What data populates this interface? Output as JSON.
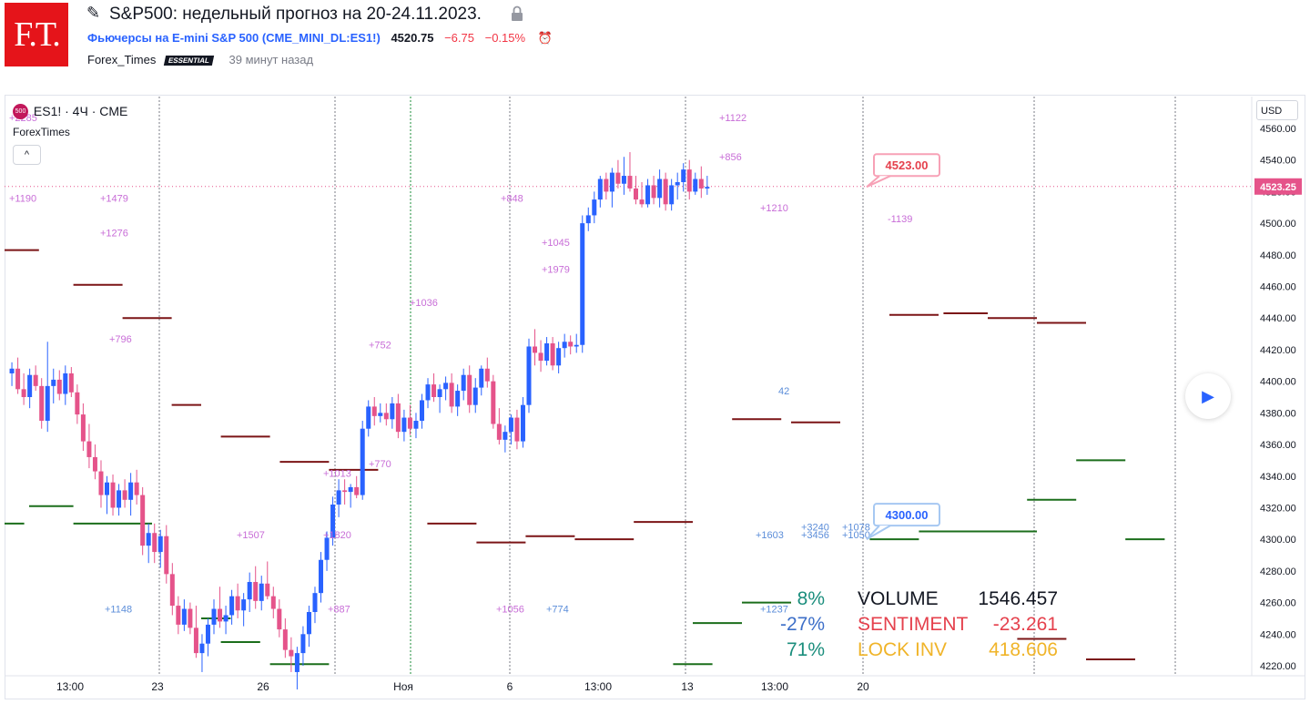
{
  "header": {
    "logo_text": "F.T.",
    "title": "S&P500: недельный прогноз на 20-24.11.2023.",
    "symbol_name": "Фьючерсы на E-mini S&P 500",
    "symbol_code": "(CME_MINI_DL:ES1!)",
    "price": "4520.75",
    "change": "−6.75",
    "change_pct": "−0.15%",
    "author": "Forex_Times",
    "badge": "ESSENTIAL",
    "time_ago": "39 минут назад"
  },
  "legend": {
    "symbol_badge": "500",
    "title": "ES1! · 4Ч · CME",
    "indicator": "ForexTimes",
    "collapse": "^"
  },
  "currency": "USD",
  "colors": {
    "up": "#2962ff",
    "down": "#e5538a",
    "res": "#7b1416",
    "sup": "#1b6e1b",
    "cluster": "#c86dd7",
    "cluster_blue": "#5b8dd9"
  },
  "chart_data": {
    "type": "candlestick",
    "y_ticks": [
      4220,
      4240,
      4260,
      4280,
      4300,
      4320,
      4340,
      4360,
      4380,
      4400,
      4420,
      4440,
      4460,
      4480,
      4500,
      4520,
      4540,
      4560
    ],
    "ylim": [
      4216,
      4569
    ],
    "x_ticks": [
      {
        "label": "13:00",
        "bar": 15
      },
      {
        "label": "23",
        "bar": 34
      },
      {
        "label": "26",
        "bar": 56
      },
      {
        "label": "Ноя",
        "bar": 85
      },
      {
        "label": "6",
        "bar": 110
      },
      {
        "label": "13:00",
        "bar": 128
      },
      {
        "label": "13",
        "bar": 148
      },
      {
        "label": "13:00",
        "bar": 167
      },
      {
        "label": "20",
        "bar": 186
      }
    ],
    "candles": [
      [
        4405,
        4412,
        4397,
        4408
      ],
      [
        4408,
        4415,
        4392,
        4395
      ],
      [
        4395,
        4405,
        4385,
        4390
      ],
      [
        4390,
        4408,
        4383,
        4404
      ],
      [
        4404,
        4410,
        4394,
        4397
      ],
      [
        4397,
        4402,
        4370,
        4375
      ],
      [
        4375,
        4425,
        4368,
        4397
      ],
      [
        4397,
        4408,
        4386,
        4401
      ],
      [
        4401,
        4407,
        4388,
        4392
      ],
      [
        4392,
        4410,
        4385,
        4405
      ],
      [
        4405,
        4409,
        4390,
        4393
      ],
      [
        4393,
        4398,
        4373,
        4379
      ],
      [
        4379,
        4386,
        4356,
        4362
      ],
      [
        4362,
        4373,
        4345,
        4352
      ],
      [
        4352,
        4360,
        4338,
        4343
      ],
      [
        4343,
        4350,
        4320,
        4328
      ],
      [
        4328,
        4340,
        4316,
        4336
      ],
      [
        4336,
        4341,
        4315,
        4320
      ],
      [
        4320,
        4335,
        4315,
        4331
      ],
      [
        4331,
        4338,
        4320,
        4325
      ],
      [
        4325,
        4342,
        4315,
        4336
      ],
      [
        4336,
        4344,
        4322,
        4328
      ],
      [
        4328,
        4333,
        4290,
        4296
      ],
      [
        4296,
        4310,
        4285,
        4304
      ],
      [
        4304,
        4310,
        4285,
        4292
      ],
      [
        4292,
        4306,
        4282,
        4302
      ],
      [
        4302,
        4309,
        4272,
        4278
      ],
      [
        4278,
        4285,
        4252,
        4258
      ],
      [
        4258,
        4264,
        4240,
        4246
      ],
      [
        4246,
        4262,
        4242,
        4256
      ],
      [
        4256,
        4260,
        4240,
        4244
      ],
      [
        4244,
        4258,
        4225,
        4228
      ],
      [
        4228,
        4240,
        4216,
        4234
      ],
      [
        4234,
        4250,
        4226,
        4246
      ],
      [
        4246,
        4262,
        4240,
        4256
      ],
      [
        4256,
        4270,
        4244,
        4248
      ],
      [
        4248,
        4258,
        4240,
        4252
      ],
      [
        4252,
        4268,
        4246,
        4264
      ],
      [
        4264,
        4272,
        4250,
        4255
      ],
      [
        4255,
        4266,
        4245,
        4262
      ],
      [
        4262,
        4279,
        4254,
        4273
      ],
      [
        4273,
        4283,
        4256,
        4261
      ],
      [
        4261,
        4277,
        4255,
        4272
      ],
      [
        4272,
        4286,
        4262,
        4264
      ],
      [
        4264,
        4270,
        4250,
        4256
      ],
      [
        4256,
        4262,
        4238,
        4243
      ],
      [
        4243,
        4250,
        4225,
        4230
      ],
      [
        4230,
        4238,
        4216,
        4226
      ],
      [
        4216,
        4232,
        4205,
        4228
      ],
      [
        4228,
        4245,
        4220,
        4240
      ],
      [
        4240,
        4258,
        4232,
        4254
      ],
      [
        4254,
        4270,
        4247,
        4266
      ],
      [
        4266,
        4292,
        4260,
        4287
      ],
      [
        4287,
        4305,
        4280,
        4301
      ],
      [
        4301,
        4327,
        4296,
        4322
      ],
      [
        4322,
        4338,
        4314,
        4331
      ],
      [
        4331,
        4338,
        4322,
        4330
      ],
      [
        4330,
        4335,
        4320,
        4333
      ],
      [
        4333,
        4340,
        4326,
        4328
      ],
      [
        4328,
        4375,
        4325,
        4370
      ],
      [
        4370,
        4388,
        4365,
        4384
      ],
      [
        4384,
        4390,
        4372,
        4378
      ],
      [
        4378,
        4386,
        4374,
        4380
      ],
      [
        4380,
        4386,
        4372,
        4376
      ],
      [
        4376,
        4390,
        4370,
        4386
      ],
      [
        4386,
        4392,
        4364,
        4368
      ],
      [
        4368,
        4382,
        4362,
        4377
      ],
      [
        4377,
        4385,
        4366,
        4370
      ],
      [
        4370,
        4380,
        4364,
        4375
      ],
      [
        4375,
        4392,
        4370,
        4388
      ],
      [
        4388,
        4402,
        4383,
        4398
      ],
      [
        4398,
        4405,
        4387,
        4390
      ],
      [
        4390,
        4398,
        4380,
        4395
      ],
      [
        4395,
        4403,
        4388,
        4399
      ],
      [
        4399,
        4405,
        4380,
        4384
      ],
      [
        4384,
        4398,
        4378,
        4394
      ],
      [
        4394,
        4408,
        4388,
        4404
      ],
      [
        4404,
        4410,
        4380,
        4385
      ],
      [
        4385,
        4402,
        4380,
        4396
      ],
      [
        4396,
        4410,
        4391,
        4408
      ],
      [
        4408,
        4415,
        4396,
        4400
      ],
      [
        4400,
        4404,
        4370,
        4373
      ],
      [
        4373,
        4383,
        4360,
        4363
      ],
      [
        4363,
        4372,
        4355,
        4368
      ],
      [
        4368,
        4379,
        4360,
        4377
      ],
      [
        4377,
        4382,
        4357,
        4362
      ],
      [
        4362,
        4390,
        4358,
        4385
      ],
      [
        4385,
        4427,
        4380,
        4422
      ],
      [
        4422,
        4433,
        4410,
        4418
      ],
      [
        4418,
        4426,
        4406,
        4413
      ],
      [
        4413,
        4428,
        4410,
        4424
      ],
      [
        4424,
        4428,
        4407,
        4410
      ],
      [
        4410,
        4425,
        4405,
        4421
      ],
      [
        4421,
        4430,
        4415,
        4425
      ],
      [
        4425,
        4429,
        4417,
        4422
      ],
      [
        4422,
        4430,
        4418,
        4423
      ],
      [
        4423,
        4505,
        4418,
        4500
      ],
      [
        4500,
        4510,
        4495,
        4505
      ],
      [
        4505,
        4520,
        4500,
        4515
      ],
      [
        4515,
        4530,
        4510,
        4528
      ],
      [
        4528,
        4532,
        4515,
        4520
      ],
      [
        4520,
        4535,
        4510,
        4532
      ],
      [
        4532,
        4540,
        4522,
        4525
      ],
      [
        4525,
        4542,
        4518,
        4530
      ],
      [
        4530,
        4545,
        4520,
        4522
      ],
      [
        4522,
        4530,
        4512,
        4515
      ],
      [
        4515,
        4526,
        4510,
        4512
      ],
      [
        4512,
        4528,
        4510,
        4524
      ],
      [
        4524,
        4530,
        4512,
        4516
      ],
      [
        4516,
        4534,
        4510,
        4528
      ],
      [
        4528,
        4532,
        4508,
        4512
      ],
      [
        4512,
        4528,
        4508,
        4524
      ],
      [
        4524,
        4532,
        4515,
        4526
      ],
      [
        4526,
        4538,
        4520,
        4534
      ],
      [
        4534,
        4540,
        4515,
        4520
      ],
      [
        4520,
        4532,
        4518,
        4528
      ],
      [
        4528,
        4536,
        4516,
        4522
      ],
      [
        4522,
        4530,
        4518,
        4523
      ]
    ],
    "resistance_levels": [
      {
        "price": 4483,
        "from": 0,
        "to": 7
      },
      {
        "price": 4461,
        "from": 14,
        "to": 24
      },
      {
        "price": 4440,
        "from": 24,
        "to": 34
      },
      {
        "price": 4385,
        "from": 34,
        "to": 40
      },
      {
        "price": 4365,
        "from": 44,
        "to": 54
      },
      {
        "price": 4349,
        "from": 56,
        "to": 66
      },
      {
        "price": 4344,
        "from": 66,
        "to": 76
      },
      {
        "price": 4310,
        "from": 86,
        "to": 96
      },
      {
        "price": 4298,
        "from": 96,
        "to": 106
      },
      {
        "price": 4302,
        "from": 106,
        "to": 116
      },
      {
        "price": 4300,
        "from": 116,
        "to": 128
      },
      {
        "price": 4311,
        "from": 128,
        "to": 140
      },
      {
        "price": 4376,
        "from": 148,
        "to": 158
      },
      {
        "price": 4374,
        "from": 160,
        "to": 170
      },
      {
        "price": 4442,
        "from": 180,
        "to": 190
      },
      {
        "price": 4443,
        "from": 191,
        "to": 200
      },
      {
        "price": 4440,
        "from": 200,
        "to": 210
      },
      {
        "price": 4437,
        "from": 210,
        "to": 220
      },
      {
        "price": 4224,
        "from": 220,
        "to": 230
      },
      {
        "price": 4237,
        "from": 206,
        "to": 216
      }
    ],
    "support_levels": [
      {
        "price": 4310,
        "from": 0,
        "to": 4
      },
      {
        "price": 4321,
        "from": 5,
        "to": 14
      },
      {
        "price": 4310,
        "from": 14,
        "to": 30
      },
      {
        "price": 4250,
        "from": 40,
        "to": 46
      },
      {
        "price": 4235,
        "from": 44,
        "to": 52
      },
      {
        "price": 4221,
        "from": 54,
        "to": 66
      },
      {
        "price": 4221,
        "from": 136,
        "to": 144
      },
      {
        "price": 4247,
        "from": 140,
        "to": 150
      },
      {
        "price": 4260,
        "from": 150,
        "to": 160
      },
      {
        "price": 4300,
        "from": 176,
        "to": 186
      },
      {
        "price": 4305,
        "from": 186,
        "to": 210
      },
      {
        "price": 4325,
        "from": 208,
        "to": 218
      },
      {
        "price": 4350,
        "from": 218,
        "to": 228
      },
      {
        "price": 4300,
        "from": 228,
        "to": 236
      }
    ],
    "cluster_labels": [
      {
        "text": "+2285",
        "bar": 0,
        "price": 4567,
        "color": "cluster"
      },
      {
        "text": "+1190",
        "bar": 0,
        "price": 4516,
        "color": "cluster"
      },
      {
        "text": "+1479",
        "bar": 20,
        "price": 4516,
        "color": "cluster"
      },
      {
        "text": "+1276",
        "bar": 20,
        "price": 4494,
        "color": "cluster"
      },
      {
        "text": "+796",
        "bar": 22,
        "price": 4427,
        "color": "cluster"
      },
      {
        "text": "+1122",
        "bar": 156,
        "price": 4567,
        "color": "cluster"
      },
      {
        "text": "+856",
        "bar": 156,
        "price": 4542,
        "color": "cluster"
      },
      {
        "text": "+848",
        "bar": 108,
        "price": 4516,
        "color": "cluster"
      },
      {
        "text": "+1210",
        "bar": 165,
        "price": 4510,
        "color": "cluster"
      },
      {
        "text": "+1045",
        "bar": 117,
        "price": 4488,
        "color": "cluster"
      },
      {
        "text": "+1979",
        "bar": 117,
        "price": 4471,
        "color": "cluster"
      },
      {
        "text": "+1036",
        "bar": 88,
        "price": 4450,
        "color": "cluster"
      },
      {
        "text": "+752",
        "bar": 79,
        "price": 4423,
        "color": "cluster"
      },
      {
        "text": "+770",
        "bar": 79,
        "price": 4348,
        "color": "cluster"
      },
      {
        "text": "+1013",
        "bar": 69,
        "price": 4342,
        "color": "cluster"
      },
      {
        "text": "+1507",
        "bar": 50,
        "price": 4303,
        "color": "cluster"
      },
      {
        "text": "+1820",
        "bar": 69,
        "price": 4303,
        "color": "cluster"
      },
      {
        "text": "+887",
        "bar": 70,
        "price": 4256,
        "color": "cluster"
      },
      {
        "text": "+1148",
        "bar": 21,
        "price": 4256,
        "color": "cluster_blue"
      },
      {
        "text": "+1056",
        "bar": 107,
        "price": 4256,
        "color": "cluster"
      },
      {
        "text": "+774",
        "bar": 118,
        "price": 4256,
        "color": "cluster_blue"
      },
      {
        "text": "+1237",
        "bar": 165,
        "price": 4256,
        "color": "cluster_blue"
      },
      {
        "text": "+1603",
        "bar": 164,
        "price": 4303,
        "color": "cluster_blue"
      },
      {
        "text": "+3240",
        "bar": 174,
        "price": 4308,
        "color": "cluster_blue"
      },
      {
        "text": "+1078",
        "bar": 183,
        "price": 4308,
        "color": "cluster_blue"
      },
      {
        "text": "+3456",
        "bar": 174,
        "price": 4303,
        "color": "cluster_blue"
      },
      {
        "text": "+1050",
        "bar": 183,
        "price": 4303,
        "color": "cluster_blue"
      },
      {
        "text": "-1139",
        "bar": 193,
        "price": 4503,
        "color": "cluster"
      },
      {
        "text": "42",
        "bar": 169,
        "price": 4394,
        "color": "cluster_blue"
      }
    ],
    "current_price": 4523.25,
    "current_price_label": "4523.25",
    "annotations": [
      {
        "text": "4523.00",
        "price": 4523,
        "kind": "target-up"
      },
      {
        "text": "4300.00",
        "price": 4300,
        "kind": "target-down"
      }
    ],
    "stats": [
      {
        "pct": "8%",
        "pct_color": "#1b8e7d",
        "label": "VOLUME",
        "label_color": "#131722",
        "value": "1546.457",
        "value_color": "#131722"
      },
      {
        "pct": "-27%",
        "pct_color": "#3d6fc8",
        "label": "SENTIMENT",
        "label_color": "#e5414d",
        "value": "-23.261",
        "value_color": "#e5414d"
      },
      {
        "pct": "71%",
        "pct_color": "#1b8e7d",
        "label": "LOCK INV",
        "label_color": "#f0b429",
        "value": "418.606",
        "value_color": "#f0b429"
      }
    ]
  }
}
